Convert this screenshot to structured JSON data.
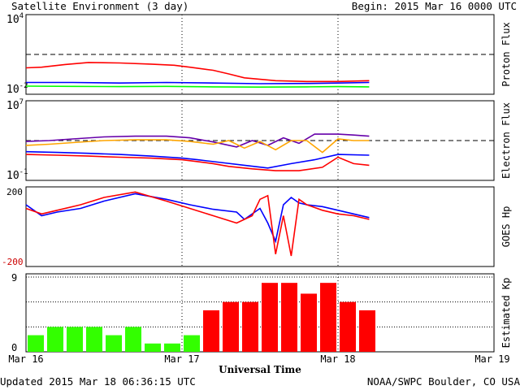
{
  "header": {
    "title": "Satellite Environment (3 day)",
    "begin": "Begin:  2015 Mar 16 0000 UTC"
  },
  "footer": {
    "updated": "Updated 2015 Mar 18 06:36:15 UTC",
    "credit": "NOAA/SWPC Boulder, CO USA"
  },
  "colors": {
    "red": "#ff0000",
    "blue": "#0000ff",
    "green": "#00ff00",
    "orange": "#ffa500",
    "purple": "#6600aa",
    "kp_low": "#33ff00",
    "kp_high": "#ff0000"
  },
  "chart_data": [
    {
      "id": "proton",
      "type": "line",
      "ylabel": "Proton Flux",
      "yscale": "log",
      "ylim": [
        0.01,
        10000
      ],
      "yticks": [
        {
          "label_main": "10",
          "label_exp": "4"
        },
        {
          "label_main": "10",
          "label_exp": "-2"
        }
      ],
      "threshold": 10,
      "series": [
        {
          "color": "red",
          "x": [
            0,
            0.1,
            0.25,
            0.4,
            0.6,
            0.8,
            0.95,
            1.05,
            1.2,
            1.3,
            1.4,
            1.6,
            1.8,
            2.0,
            2.2
          ],
          "y": [
            0.8,
            0.9,
            1.5,
            2.2,
            2.0,
            1.6,
            1.3,
            0.9,
            0.5,
            0.25,
            0.12,
            0.07,
            0.06,
            0.06,
            0.07
          ]
        },
        {
          "color": "blue",
          "x": [
            0,
            0.3,
            0.6,
            0.9,
            1.2,
            1.5,
            1.8,
            2.0,
            2.2
          ],
          "y": [
            0.05,
            0.05,
            0.045,
            0.05,
            0.045,
            0.04,
            0.042,
            0.045,
            0.05
          ]
        },
        {
          "color": "green",
          "x": [
            0,
            0.3,
            0.6,
            0.9,
            1.2,
            1.5,
            1.8,
            2.0,
            2.2
          ],
          "y": [
            0.025,
            0.024,
            0.023,
            0.024,
            0.022,
            0.021,
            0.022,
            0.023,
            0.022
          ]
        }
      ]
    },
    {
      "id": "electron",
      "type": "line",
      "ylabel": "Electron Flux",
      "yscale": "log",
      "ylim": [
        0.1,
        10000000
      ],
      "yticks": [
        {
          "label_main": "10",
          "label_exp": "7"
        },
        {
          "label_main": "10",
          "label_exp": "-1"
        }
      ],
      "threshold": 1000,
      "series": [
        {
          "color": "purple",
          "x": [
            0,
            0.15,
            0.3,
            0.5,
            0.7,
            0.9,
            1.05,
            1.2,
            1.35,
            1.45,
            1.55,
            1.65,
            1.75,
            1.85,
            2.0,
            2.1,
            2.2
          ],
          "y": [
            800,
            1000,
            1500,
            2500,
            3000,
            3000,
            2000,
            700,
            200,
            1000,
            300,
            2000,
            500,
            5000,
            5000,
            4000,
            3000
          ]
        },
        {
          "color": "orange",
          "x": [
            0,
            0.15,
            0.3,
            0.5,
            0.7,
            0.9,
            1.05,
            1.2,
            1.3,
            1.4,
            1.5,
            1.6,
            1.7,
            1.8,
            1.9,
            2.0,
            2.1,
            2.2
          ],
          "y": [
            300,
            400,
            600,
            1000,
            1200,
            1200,
            800,
            400,
            1000,
            150,
            800,
            100,
            1000,
            1000,
            50,
            1500,
            1000,
            1000
          ]
        },
        {
          "color": "blue",
          "x": [
            0,
            0.2,
            0.4,
            0.6,
            0.8,
            1.0,
            1.1,
            1.25,
            1.4,
            1.55,
            1.7,
            1.85,
            2.0,
            2.2
          ],
          "y": [
            60,
            50,
            40,
            30,
            20,
            12,
            8,
            4,
            2,
            1,
            3,
            8,
            30,
            25
          ]
        },
        {
          "color": "red",
          "x": [
            0,
            0.2,
            0.4,
            0.6,
            0.8,
            1.0,
            1.1,
            1.2,
            1.3,
            1.45,
            1.6,
            1.75,
            1.9,
            2.0,
            2.1,
            2.2
          ],
          "y": [
            30,
            25,
            20,
            15,
            12,
            8,
            5,
            3,
            1.5,
            0.8,
            0.5,
            0.5,
            1.2,
            15,
            3,
            2
          ]
        }
      ]
    },
    {
      "id": "goes-hp",
      "type": "line",
      "ylabel": "GOES Hp",
      "ylim": [
        -200,
        200
      ],
      "ytick_labels": [
        "200",
        "-200"
      ],
      "series": [
        {
          "color": "blue",
          "x": [
            0,
            0.1,
            0.2,
            0.35,
            0.5,
            0.7,
            0.9,
            1.05,
            1.2,
            1.35,
            1.4,
            1.5,
            1.55,
            1.6,
            1.65,
            1.7,
            1.75,
            1.8,
            1.9,
            2.0,
            2.1,
            2.2
          ],
          "y": [
            120,
            60,
            80,
            100,
            140,
            180,
            150,
            120,
            95,
            80,
            40,
            100,
            20,
            -80,
            120,
            160,
            130,
            120,
            110,
            90,
            70,
            50
          ]
        },
        {
          "color": "red",
          "x": [
            0,
            0.1,
            0.2,
            0.35,
            0.5,
            0.7,
            0.9,
            1.05,
            1.2,
            1.35,
            1.45,
            1.5,
            1.55,
            1.6,
            1.65,
            1.7,
            1.75,
            1.8,
            1.9,
            2.0,
            2.1,
            2.2
          ],
          "y": [
            100,
            70,
            90,
            120,
            160,
            190,
            140,
            100,
            60,
            20,
            60,
            150,
            170,
            -150,
            60,
            -160,
            150,
            120,
            90,
            70,
            60,
            40
          ]
        }
      ]
    },
    {
      "id": "kp",
      "type": "bar",
      "ylabel": "Estimated Kp",
      "ylim": [
        0,
        9
      ],
      "ytick_labels": [
        "9",
        "0"
      ],
      "bar_values": [
        2,
        3,
        3,
        3,
        2,
        3,
        1,
        1,
        2,
        5,
        6,
        6,
        8.3,
        8.3,
        7,
        8.3,
        6,
        5
      ],
      "bar_colors": [
        "low",
        "low",
        "low",
        "low",
        "low",
        "low",
        "low",
        "low",
        "low",
        "high",
        "high",
        "high",
        "high",
        "high",
        "high",
        "high",
        "high",
        "high"
      ]
    }
  ],
  "x_axis": {
    "title": "Universal Time",
    "tick_labels": [
      "Mar 16",
      "Mar 17",
      "Mar 18",
      "Mar 19"
    ]
  }
}
